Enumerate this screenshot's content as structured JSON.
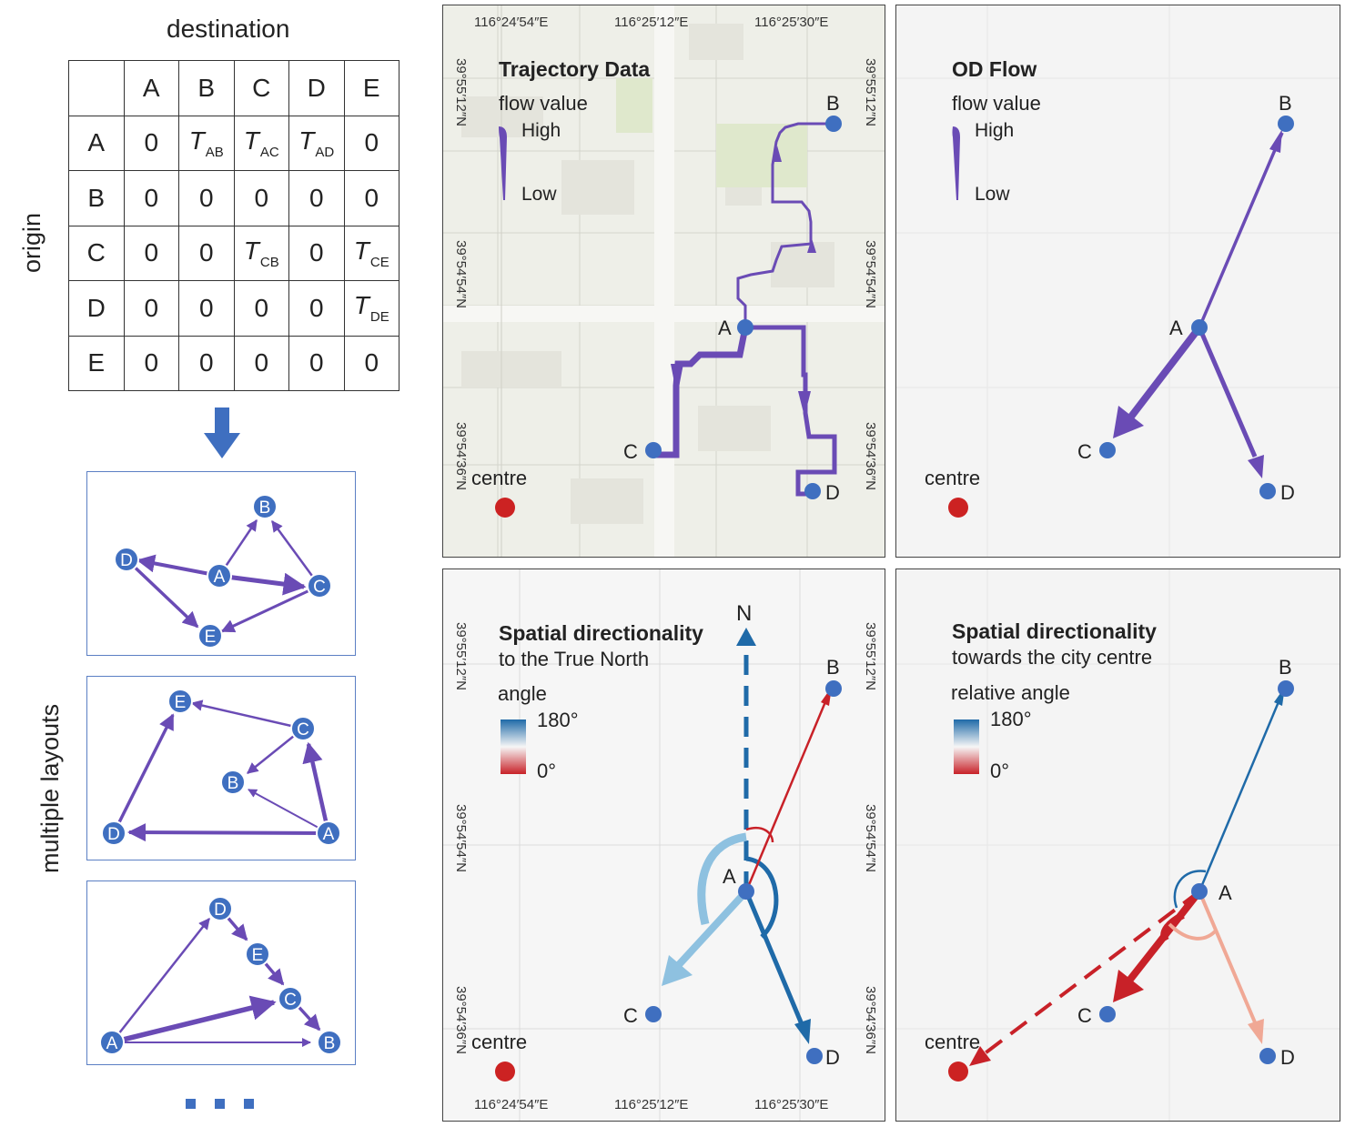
{
  "matrix": {
    "title": "destination",
    "row_axis_label": "origin",
    "columns": [
      "",
      "A",
      "B",
      "C",
      "D",
      "E"
    ],
    "rows": [
      {
        "label": "A",
        "cells": [
          {
            "v": "0"
          },
          {
            "t": "T",
            "s": "AB"
          },
          {
            "t": "T",
            "s": "AC"
          },
          {
            "t": "T",
            "s": "AD"
          },
          {
            "v": "0"
          }
        ]
      },
      {
        "label": "B",
        "cells": [
          {
            "v": "0"
          },
          {
            "v": "0"
          },
          {
            "v": "0"
          },
          {
            "v": "0"
          },
          {
            "v": "0"
          }
        ]
      },
      {
        "label": "C",
        "cells": [
          {
            "v": "0"
          },
          {
            "v": "0"
          },
          {
            "t": "T",
            "s": "CB"
          },
          {
            "v": "0"
          },
          {
            "t": "T",
            "s": "CE"
          }
        ]
      },
      {
        "label": "D",
        "cells": [
          {
            "v": "0"
          },
          {
            "v": "0"
          },
          {
            "v": "0"
          },
          {
            "v": "0"
          },
          {
            "t": "T",
            "s": "DE"
          }
        ]
      },
      {
        "label": "E",
        "cells": [
          {
            "v": "0"
          },
          {
            "v": "0"
          },
          {
            "v": "0"
          },
          {
            "v": "0"
          },
          {
            "v": "0"
          }
        ]
      }
    ]
  },
  "layouts_label": "multiple layouts",
  "node_labels": [
    "A",
    "B",
    "C",
    "D",
    "E"
  ],
  "panels": {
    "trajectory": {
      "title": "Trajectory Data",
      "legend_title": "flow value",
      "high": "High",
      "low": "Low"
    },
    "od_flow": {
      "title": "OD Flow",
      "legend_title": "flow value",
      "high": "High",
      "low": "Low"
    },
    "north": {
      "title": "Spatial directionality",
      "subtitle": "to the True North",
      "legend_title": "angle",
      "max": "180°",
      "min": "0°",
      "north": "N"
    },
    "centre_dir": {
      "title": "Spatial directionality",
      "subtitle": "towards the city centre",
      "legend_title": "relative angle",
      "max": "180°",
      "min": "0°"
    }
  },
  "centre_label": "centre",
  "lon_ticks": [
    "116°24′54″E",
    "116°25′12″E",
    "116°25′30″E"
  ],
  "lat_ticks": [
    "39°55′12″N",
    "39°54′54″N",
    "39°54′36″N"
  ],
  "colors": {
    "flow": "#6a4bb5",
    "node": "#3f6fc0",
    "centre": "#cc2222",
    "blue": "#1f6aa8",
    "lightblue": "#8ec1e0",
    "red": "#c82128",
    "lightred": "#f0a895"
  }
}
